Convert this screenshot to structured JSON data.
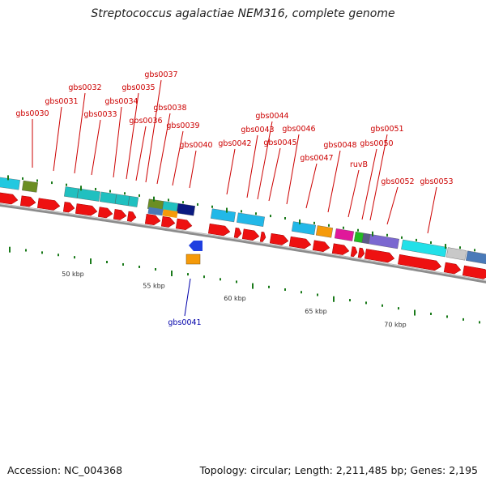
{
  "title": "Streptococcus agalactiae NEM316, complete genome",
  "footer": {
    "accession": "Accession: NC_004368",
    "summary": "Topology: circular; Length: 2,211,485 bp; Genes: 2,195"
  },
  "colors": {
    "cds": "#ee1111",
    "backbone": "#9a9a9a",
    "label_forward": "#cc0000",
    "label_reverse": "#0000aa",
    "tick": "#1a7a1a"
  },
  "scale_labels": [
    "50 kbp",
    "55 kbp",
    "60 kbp",
    "65 kbp",
    "70 kbp"
  ],
  "gene_labels": [
    {
      "name": "gbs0030",
      "strand": "+"
    },
    {
      "name": "gbs0031",
      "strand": "+"
    },
    {
      "name": "gbs0032",
      "strand": "+"
    },
    {
      "name": "gbs0033",
      "strand": "+"
    },
    {
      "name": "gbs0034",
      "strand": "+"
    },
    {
      "name": "gbs0035",
      "strand": "+"
    },
    {
      "name": "gbs0036",
      "strand": "+"
    },
    {
      "name": "gbs0037",
      "strand": "+"
    },
    {
      "name": "gbs0038",
      "strand": "+"
    },
    {
      "name": "gbs0039",
      "strand": "+"
    },
    {
      "name": "gbs0040",
      "strand": "+"
    },
    {
      "name": "gbs0041",
      "strand": "-"
    },
    {
      "name": "gbs0042",
      "strand": "+"
    },
    {
      "name": "gbs0043",
      "strand": "+"
    },
    {
      "name": "gbs0044",
      "strand": "+"
    },
    {
      "name": "gbs0045",
      "strand": "+"
    },
    {
      "name": "gbs0046",
      "strand": "+"
    },
    {
      "name": "gbs0047",
      "strand": "+"
    },
    {
      "name": "gbs0048",
      "strand": "+"
    },
    {
      "name": "ruvB",
      "strand": "+"
    },
    {
      "name": "gbs0050",
      "strand": "+"
    },
    {
      "name": "gbs0051",
      "strand": "+"
    },
    {
      "name": "gbs0052",
      "strand": "+"
    },
    {
      "name": "gbs0053",
      "strand": "+"
    }
  ]
}
